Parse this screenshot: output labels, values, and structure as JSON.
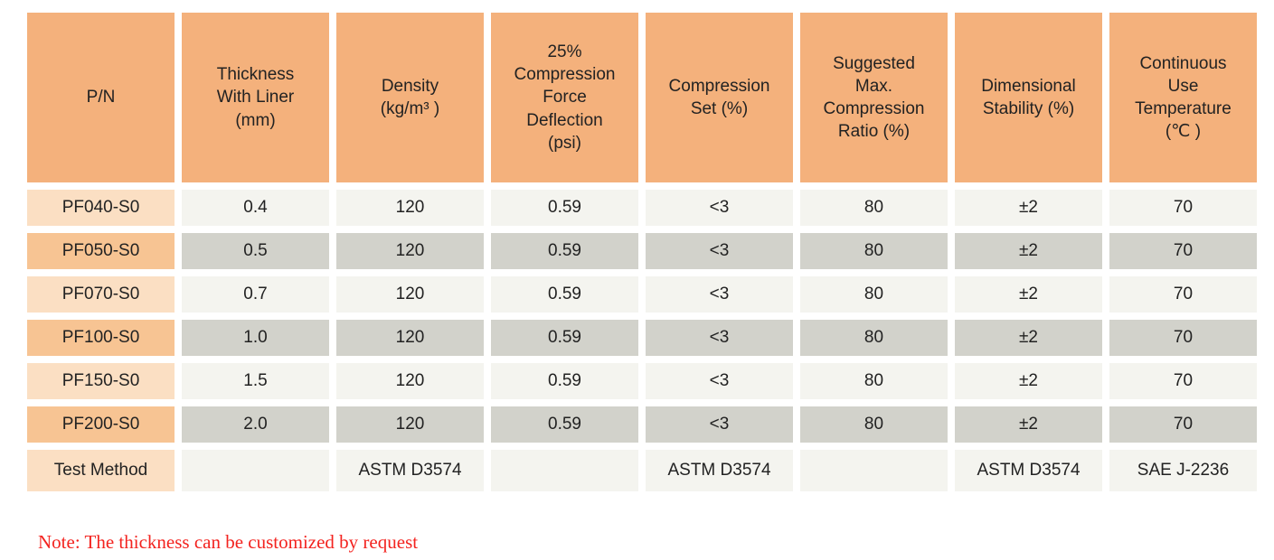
{
  "table": {
    "headers": [
      {
        "id": "pn",
        "label": "P/N"
      },
      {
        "id": "thickness",
        "label": "Thickness\nWith Liner\n(mm)"
      },
      {
        "id": "density",
        "label": "Density\n(kg/m³ )"
      },
      {
        "id": "cfd",
        "label": "25%\nCompression\nForce\nDeflection\n(psi)"
      },
      {
        "id": "compression-set",
        "label": "Compression\nSet (%)"
      },
      {
        "id": "max-compression",
        "label": "Suggested\nMax.\nCompression\nRatio (%)"
      },
      {
        "id": "dimensional",
        "label": "Dimensional\nStability (%)"
      },
      {
        "id": "continuous-temp",
        "label": "Continuous\nUse\nTemperature\n(℃ )"
      }
    ],
    "rows": [
      {
        "cells": [
          "PF040-S0",
          "0.4",
          "120",
          "0.59",
          "<3",
          "80",
          "±2",
          "70"
        ]
      },
      {
        "cells": [
          "PF050-S0",
          "0.5",
          "120",
          "0.59",
          "<3",
          "80",
          "±2",
          "70"
        ]
      },
      {
        "cells": [
          "PF070-S0",
          "0.7",
          "120",
          "0.59",
          "<3",
          "80",
          "±2",
          "70"
        ]
      },
      {
        "cells": [
          "PF100-S0",
          "1.0",
          "120",
          "0.59",
          "<3",
          "80",
          "±2",
          "70"
        ]
      },
      {
        "cells": [
          "PF150-S0",
          "1.5",
          "120",
          "0.59",
          "<3",
          "80",
          "±2",
          "70"
        ]
      },
      {
        "cells": [
          "PF200-S0",
          "2.0",
          "120",
          "0.59",
          "<3",
          "80",
          "±2",
          "70"
        ]
      },
      {
        "cells": [
          "Test Method",
          "",
          "ASTM D3574",
          "",
          "ASTM D3574",
          "",
          "ASTM D3574",
          "SAE J-2236"
        ],
        "is_test_method": true
      }
    ]
  },
  "note": {
    "text": "Note: The thickness can be customized by request"
  },
  "colors": {
    "header_bg": "#f4b17c",
    "pn_light_bg": "#fbdfc3",
    "pn_dark_bg": "#f7c493",
    "cell_light_bg": "#f4f4ef",
    "cell_dark_bg": "#d2d2cb",
    "note_text": "#f3231f",
    "text": "#222222"
  }
}
